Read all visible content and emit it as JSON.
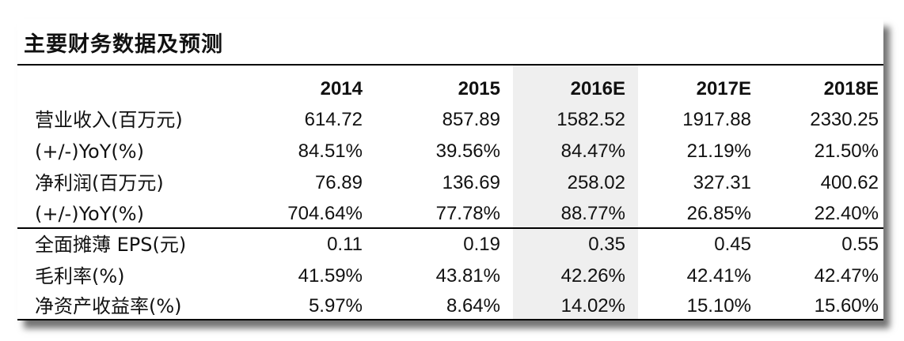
{
  "title": "主要财务数据及预测",
  "columns": [
    "2014",
    "2015",
    "2016E",
    "2017E",
    "2018E"
  ],
  "rows": [
    {
      "label": "营业收入(百万元)",
      "values": [
        "614.72",
        "857.89",
        "1582.52",
        "1917.88",
        "2330.25"
      ]
    },
    {
      "label": "(+/-)YoY(%)",
      "values": [
        "84.51%",
        "39.56%",
        "84.47%",
        "21.19%",
        "21.50%"
      ]
    },
    {
      "label": "净利润(百万元)",
      "values": [
        "76.89",
        "136.69",
        "258.02",
        "327.31",
        "400.62"
      ]
    },
    {
      "label": "(+/-)YoY(%)",
      "values": [
        "704.64%",
        "77.78%",
        "88.77%",
        "26.85%",
        "22.40%"
      ]
    },
    {
      "label": "全面摊薄 EPS(元)",
      "values": [
        "0.11",
        "0.19",
        "0.35",
        "0.45",
        "0.55"
      ]
    },
    {
      "label": "毛利率(%)",
      "values": [
        "41.59%",
        "43.81%",
        "42.26%",
        "42.41%",
        "42.47%"
      ]
    },
    {
      "label": "净资产收益率(%)",
      "values": [
        "5.97%",
        "8.64%",
        "14.02%",
        "15.10%",
        "15.60%"
      ]
    }
  ]
}
